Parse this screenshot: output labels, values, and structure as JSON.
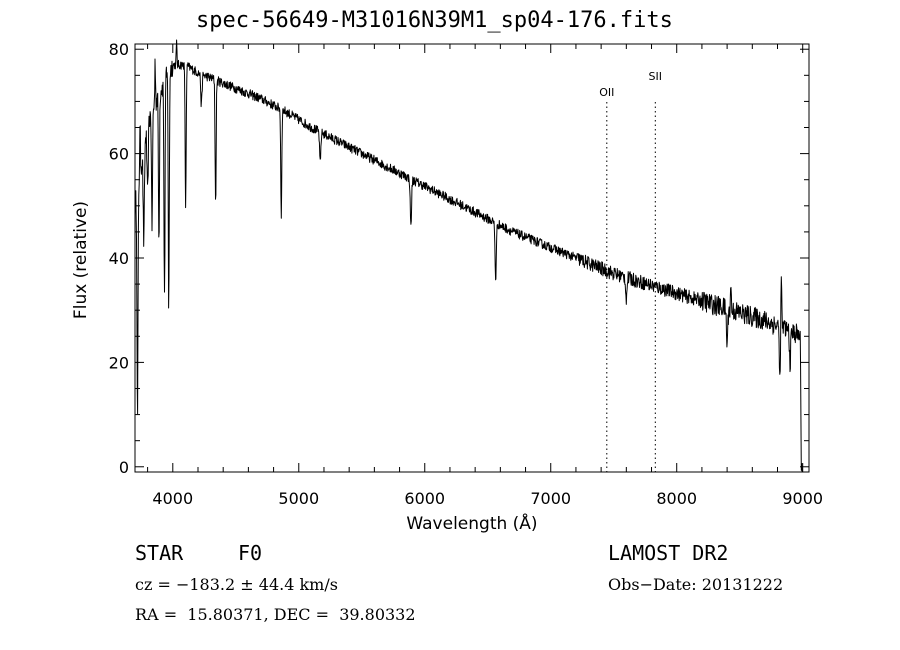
{
  "chart_data": {
    "type": "line",
    "title": "spec-56649-M31016N39M1_sp04-176.fits",
    "xlabel": "Wavelength (Å)",
    "ylabel": "Flux (relative)",
    "xlim": [
      3700,
      9050
    ],
    "ylim": [
      -1,
      81
    ],
    "xticks": [
      4000,
      5000,
      6000,
      7000,
      8000,
      9000
    ],
    "yticks": [
      0,
      20,
      40,
      60,
      80
    ],
    "grid": false,
    "continuum": {
      "x": [
        3700,
        3800,
        3900,
        4000,
        4100,
        4200,
        4300,
        4500,
        4700,
        4900,
        5100,
        5300,
        5500,
        5700,
        5900,
        6100,
        6300,
        6500,
        6700,
        6900,
        7100,
        7300,
        7500,
        7700,
        7900,
        8100,
        8300,
        8500,
        8700,
        8900,
        9000
      ],
      "y": [
        50,
        66,
        72,
        77,
        77,
        75.5,
        74.5,
        72.5,
        70.5,
        68,
        65,
        62.5,
        60,
        57.5,
        55,
        52.5,
        50,
        47.5,
        45,
        43,
        41,
        39,
        37,
        35.5,
        34,
        32.5,
        31,
        29.5,
        28,
        26,
        25
      ]
    },
    "absorption_lines": [
      {
        "x": 3720,
        "depth": 45
      },
      {
        "x": 3770,
        "depth": 18
      },
      {
        "x": 3800,
        "depth": 14
      },
      {
        "x": 3835,
        "depth": 22
      },
      {
        "x": 3890,
        "depth": 28
      },
      {
        "x": 3934,
        "depth": 42
      },
      {
        "x": 3968,
        "depth": 46
      },
      {
        "x": 4102,
        "depth": 28
      },
      {
        "x": 4227,
        "depth": 6
      },
      {
        "x": 4340,
        "depth": 24
      },
      {
        "x": 4861,
        "depth": 21
      },
      {
        "x": 5170,
        "depth": 6
      },
      {
        "x": 5890,
        "depth": 9
      },
      {
        "x": 6563,
        "depth": 11
      },
      {
        "x": 7600,
        "depth": 4
      },
      {
        "x": 8400,
        "depth": 7
      },
      {
        "x": 8820,
        "depth": 10
      },
      {
        "x": 8900,
        "depth": 6
      },
      {
        "x": 8990,
        "depth": 26
      }
    ],
    "spikes": [
      {
        "x": 3740,
        "height": 8
      },
      {
        "x": 3860,
        "height": 8
      },
      {
        "x": 4030,
        "height": 4
      },
      {
        "x": 8430,
        "height": 5
      },
      {
        "x": 8830,
        "height": 13
      }
    ],
    "noise_amplitude": 0.9,
    "markers": [
      {
        "label": "OII",
        "x": 7445
      },
      {
        "label": "SII",
        "x": 7830
      }
    ]
  },
  "info": {
    "object_class": "STAR",
    "subclass": "F0",
    "survey": "LAMOST DR2",
    "redshift": "cz = −183.2 ± 44.4 km/s",
    "obs_date": "Obs−Date: 20131222",
    "coords": "RA =  15.80371, DEC =  39.80332"
  }
}
